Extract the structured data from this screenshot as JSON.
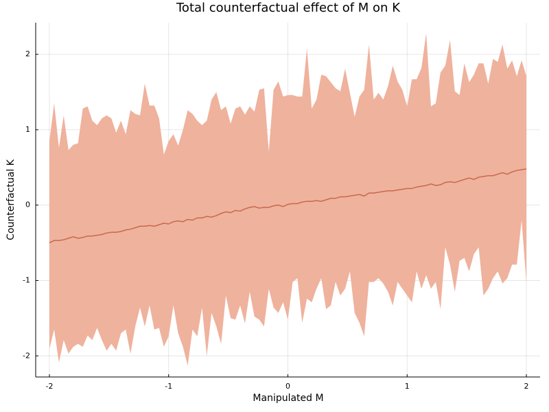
{
  "chart_data": {
    "type": "line",
    "title": "Total counterfactual effect of M on K",
    "xlabel": "Manipulated M",
    "ylabel": "Counterfactual K",
    "x": [
      -2,
      -1.96,
      -1.92,
      -1.88,
      -1.84,
      -1.8,
      -1.76,
      -1.72,
      -1.68,
      -1.64,
      -1.6,
      -1.56,
      -1.52,
      -1.48,
      -1.44,
      -1.4,
      -1.36,
      -1.32,
      -1.28,
      -1.24,
      -1.2,
      -1.16,
      -1.12,
      -1.08,
      -1.04,
      -1,
      -0.96,
      -0.92,
      -0.88,
      -0.84,
      -0.8,
      -0.76,
      -0.72,
      -0.68,
      -0.64,
      -0.6,
      -0.56,
      -0.52,
      -0.48,
      -0.44,
      -0.4,
      -0.36,
      -0.32,
      -0.28,
      -0.24,
      -0.2,
      -0.16,
      -0.12,
      -0.08,
      -0.04,
      0,
      0.04,
      0.08,
      0.12,
      0.16,
      0.2,
      0.24,
      0.28,
      0.32,
      0.36,
      0.4,
      0.44,
      0.48,
      0.52,
      0.56,
      0.6,
      0.64,
      0.68,
      0.72,
      0.76,
      0.8,
      0.84,
      0.88,
      0.92,
      0.96,
      1,
      1.04,
      1.08,
      1.12,
      1.16,
      1.2,
      1.24,
      1.28,
      1.32,
      1.36,
      1.4,
      1.44,
      1.48,
      1.52,
      1.56,
      1.6,
      1.64,
      1.68,
      1.72,
      1.76,
      1.8,
      1.84,
      1.88,
      1.92,
      1.96,
      2
    ],
    "series": [
      {
        "color": "#c8694c",
        "values": [
          -0.5,
          -0.47,
          -0.47,
          -0.46,
          -0.44,
          -0.42,
          -0.44,
          -0.43,
          -0.41,
          -0.41,
          -0.4,
          -0.39,
          -0.37,
          -0.36,
          -0.36,
          -0.35,
          -0.33,
          -0.32,
          -0.3,
          -0.28,
          -0.28,
          -0.27,
          -0.28,
          -0.26,
          -0.24,
          -0.25,
          -0.22,
          -0.21,
          -0.22,
          -0.19,
          -0.2,
          -0.17,
          -0.17,
          -0.15,
          -0.16,
          -0.14,
          -0.11,
          -0.09,
          -0.1,
          -0.07,
          -0.08,
          -0.05,
          -0.03,
          -0.02,
          -0.04,
          -0.03,
          -0.03,
          -0.01,
          0,
          -0.02,
          0.01,
          0.02,
          0.02,
          0.04,
          0.05,
          0.05,
          0.06,
          0.05,
          0.07,
          0.09,
          0.09,
          0.11,
          0.11,
          0.12,
          0.13,
          0.14,
          0.12,
          0.16,
          0.16,
          0.17,
          0.18,
          0.19,
          0.19,
          0.2,
          0.21,
          0.22,
          0.22,
          0.24,
          0.25,
          0.26,
          0.28,
          0.26,
          0.27,
          0.3,
          0.31,
          0.3,
          0.32,
          0.34,
          0.36,
          0.34,
          0.37,
          0.38,
          0.39,
          0.39,
          0.41,
          0.43,
          0.41,
          0.44,
          0.46,
          0.47,
          0.48
        ]
      }
    ],
    "band": {
      "color": "#efb29d",
      "upper": [
        0.85,
        1.35,
        0.76,
        1.19,
        0.73,
        0.8,
        0.82,
        1.28,
        1.31,
        1.12,
        1.06,
        1.15,
        1.19,
        1.15,
        0.96,
        1.12,
        0.94,
        1.26,
        1.21,
        1.19,
        1.61,
        1.32,
        1.32,
        1.15,
        0.67,
        0.85,
        0.94,
        0.79,
        1.0,
        1.26,
        1.21,
        1.12,
        1.06,
        1.12,
        1.4,
        1.5,
        1.26,
        1.31,
        1.08,
        1.28,
        1.31,
        1.2,
        1.31,
        1.24,
        1.53,
        1.55,
        0.71,
        1.53,
        1.64,
        1.44,
        1.46,
        1.46,
        1.44,
        1.44,
        2.08,
        1.28,
        1.4,
        1.73,
        1.71,
        1.63,
        1.55,
        1.51,
        1.81,
        1.49,
        1.17,
        1.44,
        1.53,
        2.13,
        1.4,
        1.49,
        1.4,
        1.58,
        1.85,
        1.64,
        1.53,
        1.31,
        1.67,
        1.67,
        1.82,
        2.28,
        1.31,
        1.35,
        1.76,
        1.85,
        2.19,
        1.51,
        1.46,
        1.88,
        1.63,
        1.73,
        1.88,
        1.88,
        1.61,
        1.94,
        1.9,
        2.13,
        1.81,
        1.92,
        1.71,
        1.92,
        1.71
      ],
      "lower": [
        -1.91,
        -1.65,
        -2.09,
        -1.79,
        -1.97,
        -1.88,
        -1.84,
        -1.88,
        -1.73,
        -1.79,
        -1.63,
        -1.79,
        -1.93,
        -1.84,
        -1.93,
        -1.7,
        -1.65,
        -1.97,
        -1.61,
        -1.36,
        -1.61,
        -1.33,
        -1.65,
        -1.63,
        -1.88,
        -1.74,
        -1.33,
        -1.7,
        -1.88,
        -2.13,
        -1.65,
        -1.74,
        -1.36,
        -2.0,
        -1.43,
        -1.61,
        -1.84,
        -1.2,
        -1.5,
        -1.52,
        -1.33,
        -1.57,
        -1.15,
        -1.48,
        -1.52,
        -1.61,
        -1.11,
        -1.36,
        -1.43,
        -1.29,
        -1.52,
        -1.02,
        -0.97,
        -1.56,
        -1.24,
        -1.29,
        -1.11,
        -0.97,
        -1.38,
        -1.33,
        -1.02,
        -1.2,
        -1.11,
        -0.88,
        -1.43,
        -1.56,
        -1.74,
        -1.02,
        -1.02,
        -0.97,
        -1.04,
        -1.15,
        -1.33,
        -1.02,
        -1.11,
        -1.2,
        -1.29,
        -0.88,
        -1.11,
        -0.93,
        -1.11,
        -1.02,
        -1.38,
        -0.56,
        -0.79,
        -1.15,
        -0.74,
        -0.7,
        -0.88,
        -0.65,
        -0.56,
        -1.2,
        -1.11,
        -0.97,
        -0.88,
        -1.04,
        -0.97,
        -0.79,
        -0.79,
        -0.2,
        -1.02
      ]
    },
    "xlim": [
      -2.115,
      2.115
    ],
    "ylim": [
      -2.28,
      2.42
    ],
    "xticks": [
      -2,
      -1,
      0,
      1,
      2
    ],
    "yticks": [
      -2,
      -1,
      0,
      1,
      2
    ],
    "grid": true
  }
}
